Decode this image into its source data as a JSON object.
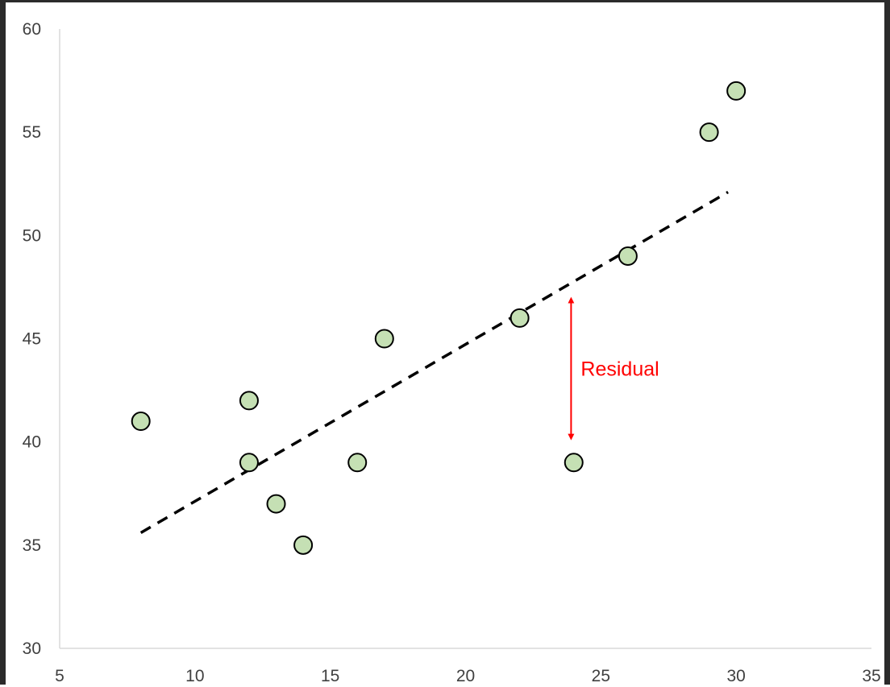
{
  "chart_data": {
    "type": "scatter",
    "title": "",
    "xlabel": "",
    "ylabel": "",
    "xlim": [
      5,
      35
    ],
    "ylim": [
      30,
      60
    ],
    "x_ticks": [
      5,
      10,
      15,
      20,
      25,
      30,
      35
    ],
    "y_ticks": [
      30,
      35,
      40,
      45,
      50,
      55,
      60
    ],
    "grid": false,
    "legend": "none",
    "series": [
      {
        "values": [
          {
            "x": 8,
            "y": 41
          },
          {
            "x": 12,
            "y": 42
          },
          {
            "x": 12,
            "y": 39
          },
          {
            "x": 13,
            "y": 37
          },
          {
            "x": 14,
            "y": 35
          },
          {
            "x": 16,
            "y": 39
          },
          {
            "x": 17,
            "y": 45
          },
          {
            "x": 22,
            "y": 46
          },
          {
            "x": 24,
            "y": 39
          },
          {
            "x": 26,
            "y": 49
          },
          {
            "x": 29,
            "y": 55
          },
          {
            "x": 30,
            "y": 57
          }
        ],
        "marker_fill": "#c5e0b4",
        "marker_stroke": "#000000"
      }
    ],
    "trendline": {
      "start": {
        "x": 8,
        "y": 35.6
      },
      "end": {
        "x": 29.7,
        "y": 52.1
      },
      "style": "dashed",
      "color": "#000000"
    },
    "annotations": [
      {
        "label": "Residual",
        "x": 23.9,
        "y_from": 47.1,
        "y_to": 40,
        "color": "#ff0000"
      }
    ]
  }
}
